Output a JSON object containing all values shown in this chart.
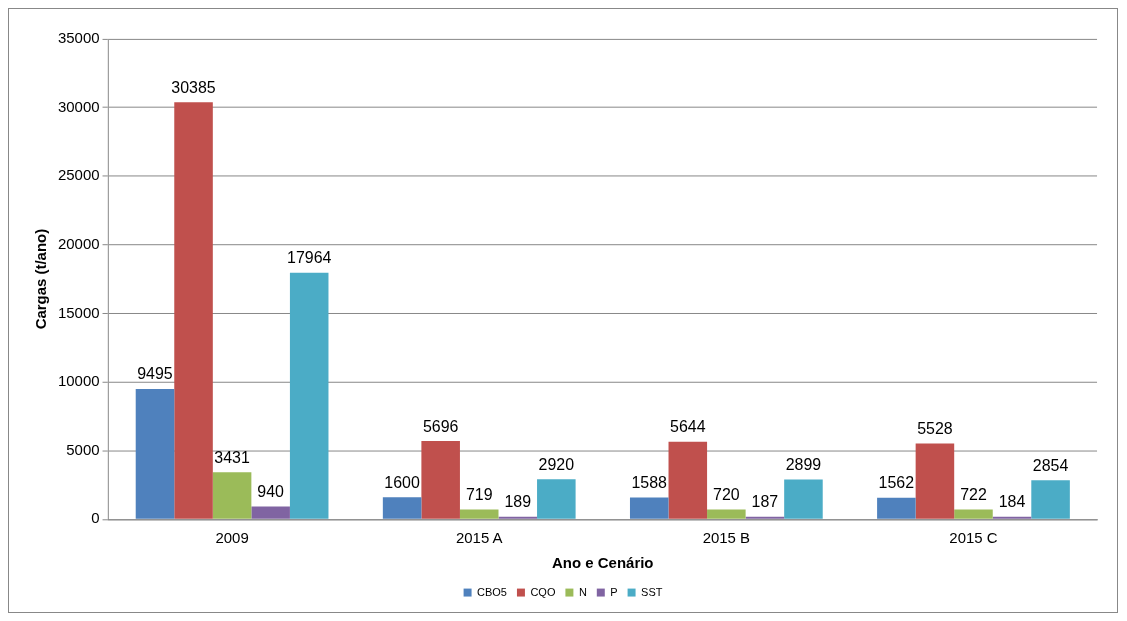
{
  "chart_data": {
    "type": "bar",
    "xlabel": "Ano e Cenário",
    "ylabel": "Cargas (t/ano)",
    "categories": [
      "2009",
      "2015 A",
      "2015 B",
      "2015 C"
    ],
    "series": [
      {
        "name": "CBO5",
        "color": "#4f81bd",
        "values": [
          9495,
          1600,
          1588,
          1562
        ]
      },
      {
        "name": "CQO",
        "color": "#c0504d",
        "values": [
          30385,
          5696,
          5644,
          5528
        ]
      },
      {
        "name": "N",
        "color": "#9bbb59",
        "values": [
          3431,
          719,
          720,
          722
        ]
      },
      {
        "name": "P",
        "color": "#8064a2",
        "values": [
          940,
          189,
          187,
          184
        ]
      },
      {
        "name": "SST",
        "color": "#4bacc6",
        "values": [
          17964,
          2920,
          2899,
          2854
        ]
      }
    ],
    "ylim": [
      0,
      35000
    ],
    "yticks": [
      0,
      5000,
      10000,
      15000,
      20000,
      25000,
      30000,
      35000
    ],
    "grid": "y",
    "legend": "bottom",
    "data_labels": true
  }
}
